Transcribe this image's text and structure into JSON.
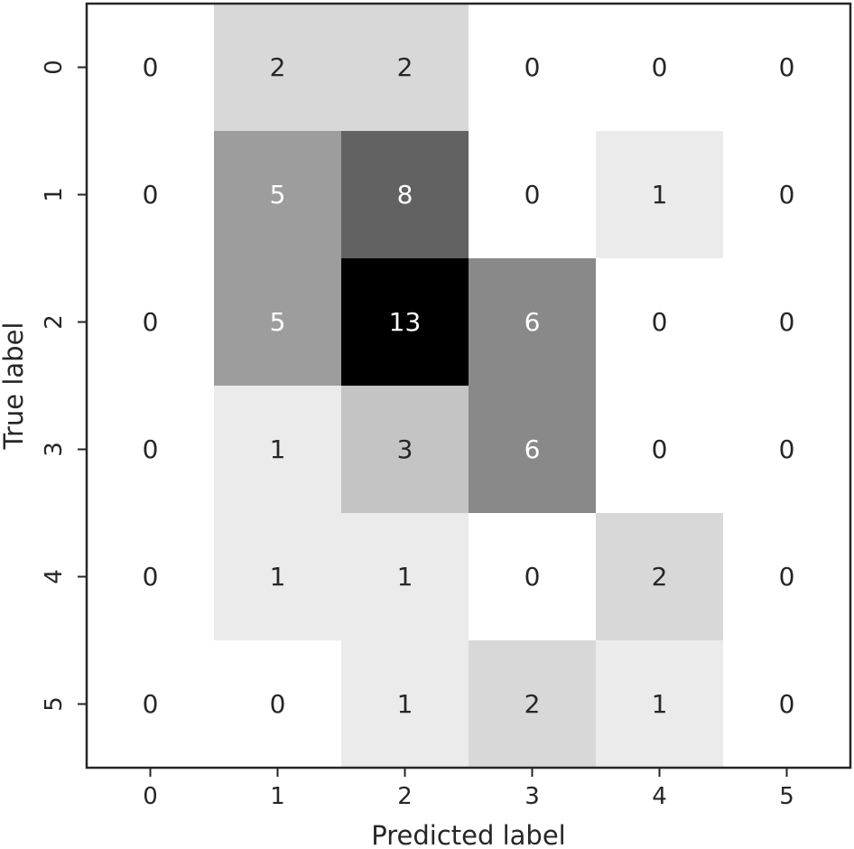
{
  "chart_data": {
    "type": "heatmap",
    "title": "",
    "xlabel": "Predicted label",
    "ylabel": "True label",
    "x_categories": [
      "0",
      "1",
      "2",
      "3",
      "4",
      "5"
    ],
    "y_categories": [
      "0",
      "1",
      "2",
      "3",
      "4",
      "5"
    ],
    "values": [
      [
        0,
        2,
        2,
        0,
        0,
        0
      ],
      [
        0,
        5,
        8,
        0,
        1,
        0
      ],
      [
        0,
        5,
        13,
        6,
        0,
        0
      ],
      [
        0,
        1,
        3,
        6,
        0,
        0
      ],
      [
        0,
        1,
        1,
        0,
        2,
        0
      ],
      [
        0,
        0,
        1,
        2,
        1,
        0
      ]
    ],
    "color_range": [
      0,
      13
    ],
    "colormap": "greys",
    "grid": false,
    "colors": {
      "low": "#ffffff",
      "high": "#000000",
      "text_dark": "#262626",
      "text_light": "#ffffff",
      "frame": "#262626"
    }
  }
}
